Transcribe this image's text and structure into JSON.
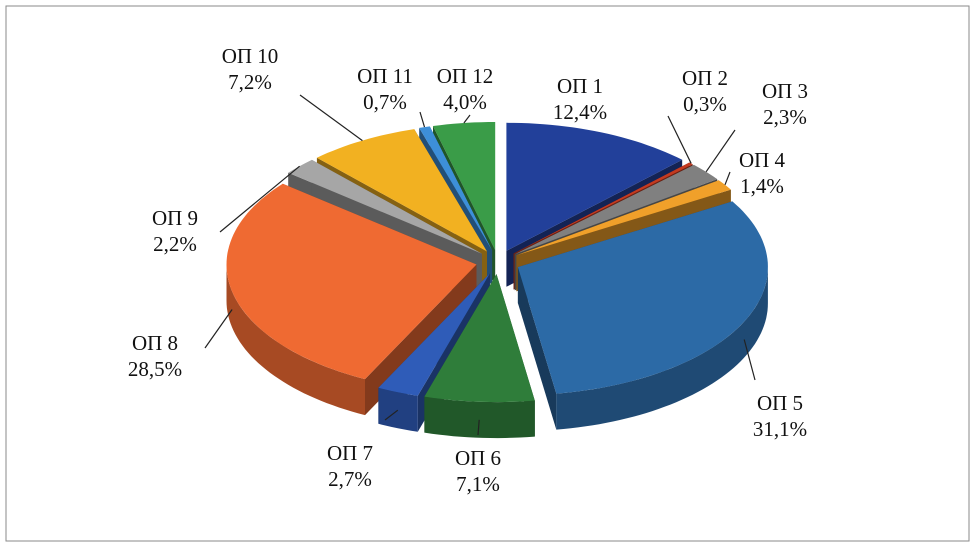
{
  "chart_data": {
    "type": "pie3d",
    "categories": [
      "ОП 1",
      "ОП 2",
      "ОП 3",
      "ОП 4",
      "ОП 5",
      "ОП 6",
      "ОП 7",
      "ОП 8",
      "ОП 9",
      "ОП 10",
      "ОП 11",
      "ОП 12"
    ],
    "values": [
      12.4,
      0.3,
      2.3,
      1.4,
      31.1,
      7.1,
      2.7,
      28.5,
      2.2,
      7.2,
      0.7,
      4.0
    ],
    "value_labels": [
      "12,4%",
      "0,3%",
      "2,3%",
      "1,4%",
      "31,1%",
      "7,1%",
      "2,7%",
      "28,5%",
      "2,2%",
      "7,2%",
      "0,7%",
      "4,0%"
    ],
    "colors": [
      "#22409a",
      "#c43a20",
      "#808080",
      "#f0a02a",
      "#2c6aa6",
      "#2f7d3a",
      "#2f5cb8",
      "#ef6a32",
      "#a6a6a6",
      "#f2b121",
      "#3d8fd8",
      "#3a9c48"
    ]
  }
}
